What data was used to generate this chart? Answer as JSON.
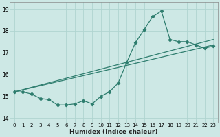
{
  "xlabel": "Humidex (Indice chaleur)",
  "background_color": "#cde8e5",
  "grid_color": "#b0d4d0",
  "line_color": "#2e7d6e",
  "xlim": [
    -0.5,
    23.5
  ],
  "ylim": [
    13.8,
    19.3
  ],
  "yticks": [
    14,
    15,
    16,
    17,
    18,
    19
  ],
  "xticks": [
    0,
    1,
    2,
    3,
    4,
    5,
    6,
    7,
    8,
    9,
    10,
    11,
    12,
    13,
    14,
    15,
    16,
    17,
    18,
    19,
    20,
    21,
    22,
    23
  ],
  "jagged_x": [
    0,
    1,
    2,
    3,
    4,
    5,
    6,
    7,
    8,
    9,
    10,
    11,
    12,
    13,
    14,
    15,
    16,
    17,
    18,
    19,
    20,
    21,
    22,
    23
  ],
  "jagged_y": [
    15.2,
    15.2,
    15.1,
    14.9,
    14.85,
    14.6,
    14.6,
    14.65,
    14.8,
    14.65,
    15.0,
    15.2,
    15.6,
    16.55,
    17.45,
    18.05,
    18.65,
    18.9,
    17.6,
    17.5,
    17.5,
    17.35,
    17.2,
    17.3
  ],
  "line1_x0": 0,
  "line1_y0": 15.2,
  "line1_x1": 23,
  "line1_y1": 17.35,
  "line2_x0": 0,
  "line2_y0": 15.2,
  "line2_x1": 23,
  "line2_y1": 17.6
}
